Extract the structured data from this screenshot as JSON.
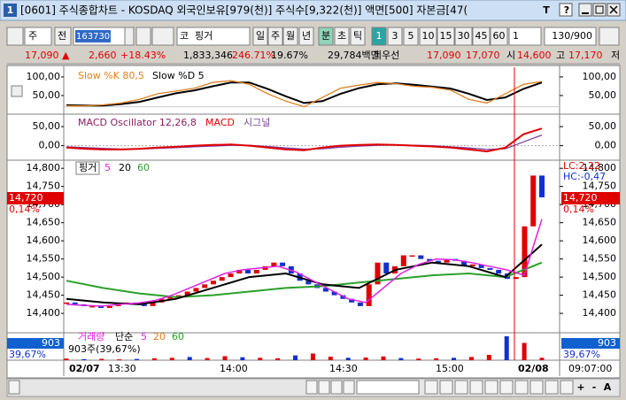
{
  "window": {
    "icon": "1",
    "title": "[0601] 주식종합차트 - KOSDAQ 외국인보유[979(천)] 주식수[9,322(천)] 액면[500] 자본금[47(",
    "tools": [
      "T",
      "?"
    ]
  },
  "toolbar": {
    "period_combo": "주",
    "prev": "전",
    "code": "163730",
    "market": "코",
    "name": "핑거",
    "periods": [
      "일",
      "주",
      "월",
      "년",
      "분",
      "초",
      "틱"
    ],
    "intervals": [
      "1",
      "3",
      "5",
      "10",
      "15",
      "30",
      "45",
      "60"
    ],
    "count": "1",
    "range": "130/900"
  },
  "quote": {
    "price": "17,090",
    "arrow": "▲",
    "change": "2,660",
    "rate": "+18.43%",
    "volume": "1,833,346",
    "vol_ratio": "246.71%",
    "turnover": "19.67%",
    "amount": "29,784백만",
    "best_label": "최우선",
    "ask": "17,090",
    "bid": "17,070",
    "open_label": "시",
    "open": "14,600",
    "high_label": "고",
    "high": "17,170",
    "low_label": "저"
  },
  "stochastic": {
    "label_k": "Slow %K 80,5",
    "label_d": "Slow %D 5",
    "ylim": [
      0,
      126
    ],
    "ticks": [
      {
        "value": 100,
        "label": "100,00"
      },
      {
        "value": 50,
        "label": "50,00"
      }
    ],
    "k": [
      22,
      22,
      25,
      30,
      40,
      55,
      62,
      70,
      85,
      90,
      80,
      55,
      35,
      20,
      45,
      70,
      78,
      85,
      82,
      75,
      72,
      65,
      40,
      30,
      55,
      80,
      88
    ],
    "d": [
      24,
      23,
      23,
      27,
      33,
      45,
      56,
      64,
      75,
      85,
      85,
      68,
      48,
      30,
      35,
      55,
      70,
      80,
      83,
      79,
      74,
      69,
      55,
      38,
      45,
      68,
      85
    ]
  },
  "macd": {
    "label_osc": "MACD Oscillator 12,26,8",
    "label_macd": "MACD",
    "label_signal": "시그널",
    "ylim": [
      -38,
      78
    ],
    "ticks": [
      {
        "value": 50,
        "label": "50,00"
      },
      {
        "value": 0,
        "label": "0,00"
      }
    ],
    "macd": [
      -5,
      -8,
      -10,
      -10,
      -8,
      -5,
      -3,
      0,
      2,
      3,
      0,
      -5,
      -10,
      -12,
      -5,
      0,
      2,
      3,
      2,
      0,
      -2,
      -5,
      -10,
      -15,
      -5,
      30,
      45
    ],
    "signal": [
      -3,
      -5,
      -7,
      -9,
      -9,
      -7,
      -5,
      -3,
      -1,
      1,
      1,
      -2,
      -6,
      -9,
      -8,
      -4,
      -1,
      1,
      2,
      1,
      0,
      -3,
      -6,
      -10,
      -8,
      10,
      28
    ]
  },
  "price": {
    "name": "핑거",
    "ma_labels": [
      "5",
      "20",
      "60"
    ],
    "lc": "LC:2,22",
    "hc": "HC:-0,47",
    "current": "14,720",
    "current_rate": "0,14%",
    "ylim": [
      14349,
      14820
    ],
    "ticks": [
      {
        "value": 14800,
        "label": "14,800"
      },
      {
        "value": 14750,
        "label": "14,750"
      },
      {
        "value": 14700,
        "label": "14,700"
      },
      {
        "value": 14650,
        "label": "14,650"
      },
      {
        "value": 14600,
        "label": "14,600"
      },
      {
        "value": 14550,
        "label": "14,550"
      },
      {
        "value": 14500,
        "label": "14,500"
      },
      {
        "value": 14450,
        "label": "14,450"
      },
      {
        "value": 14400,
        "label": "14,400"
      }
    ],
    "close": [
      14430,
      14425,
      14420,
      14420,
      14415,
      14420,
      14425,
      14430,
      14425,
      14420,
      14430,
      14440,
      14445,
      14450,
      14460,
      14470,
      14480,
      14490,
      14500,
      14510,
      14520,
      14510,
      14520,
      14530,
      14540,
      14530,
      14510,
      14490,
      14480,
      14470,
      14460,
      14450,
      14440,
      14430,
      14420,
      14480,
      14540,
      14510,
      14530,
      14560,
      14560,
      14550,
      14545,
      14540,
      14550,
      14545,
      14530,
      14535,
      14525,
      14520,
      14510,
      14495,
      14500,
      14640,
      14780,
      14720
    ],
    "ma5": [
      14425,
      14422,
      14420,
      14425,
      14428,
      14435,
      14450,
      14470,
      14490,
      14510,
      14520,
      14525,
      14530,
      14515,
      14490,
      14465,
      14440,
      14430,
      14470,
      14510,
      14535,
      14550,
      14548,
      14540,
      14530,
      14520,
      14505,
      14660
    ],
    "ma20": [
      14440,
      14430,
      14425,
      14440,
      14470,
      14500,
      14510,
      14480,
      14470,
      14520,
      14540,
      14530,
      14500,
      14590
    ],
    "ma60": [
      14490,
      14470,
      14455,
      14445,
      14450,
      14460,
      14470,
      14475,
      14485,
      14495,
      14505,
      14510,
      14500,
      14540
    ]
  },
  "volume": {
    "label": "거래량",
    "kind": "단순",
    "ma_labels": [
      "5",
      "20",
      "60"
    ],
    "current": "903",
    "rate": "39,67%",
    "legend": "903주(39,67%)",
    "ylim": [
      0,
      10000
    ],
    "values": [
      600,
      400,
      500,
      300,
      450,
      700,
      900,
      1200,
      800,
      1500,
      1100,
      900,
      700,
      1800,
      2500,
      1300,
      900,
      1000,
      1400,
      800,
      600,
      700,
      900,
      1200,
      2000,
      9000,
      6500,
      903
    ]
  },
  "time_axis": [
    "02/07",
    "13:30",
    "14:00",
    "14:30",
    "15:00",
    "02/08",
    "09:07:00"
  ],
  "bottom": {
    "zoom": [
      "+",
      "-",
      "A"
    ]
  }
}
